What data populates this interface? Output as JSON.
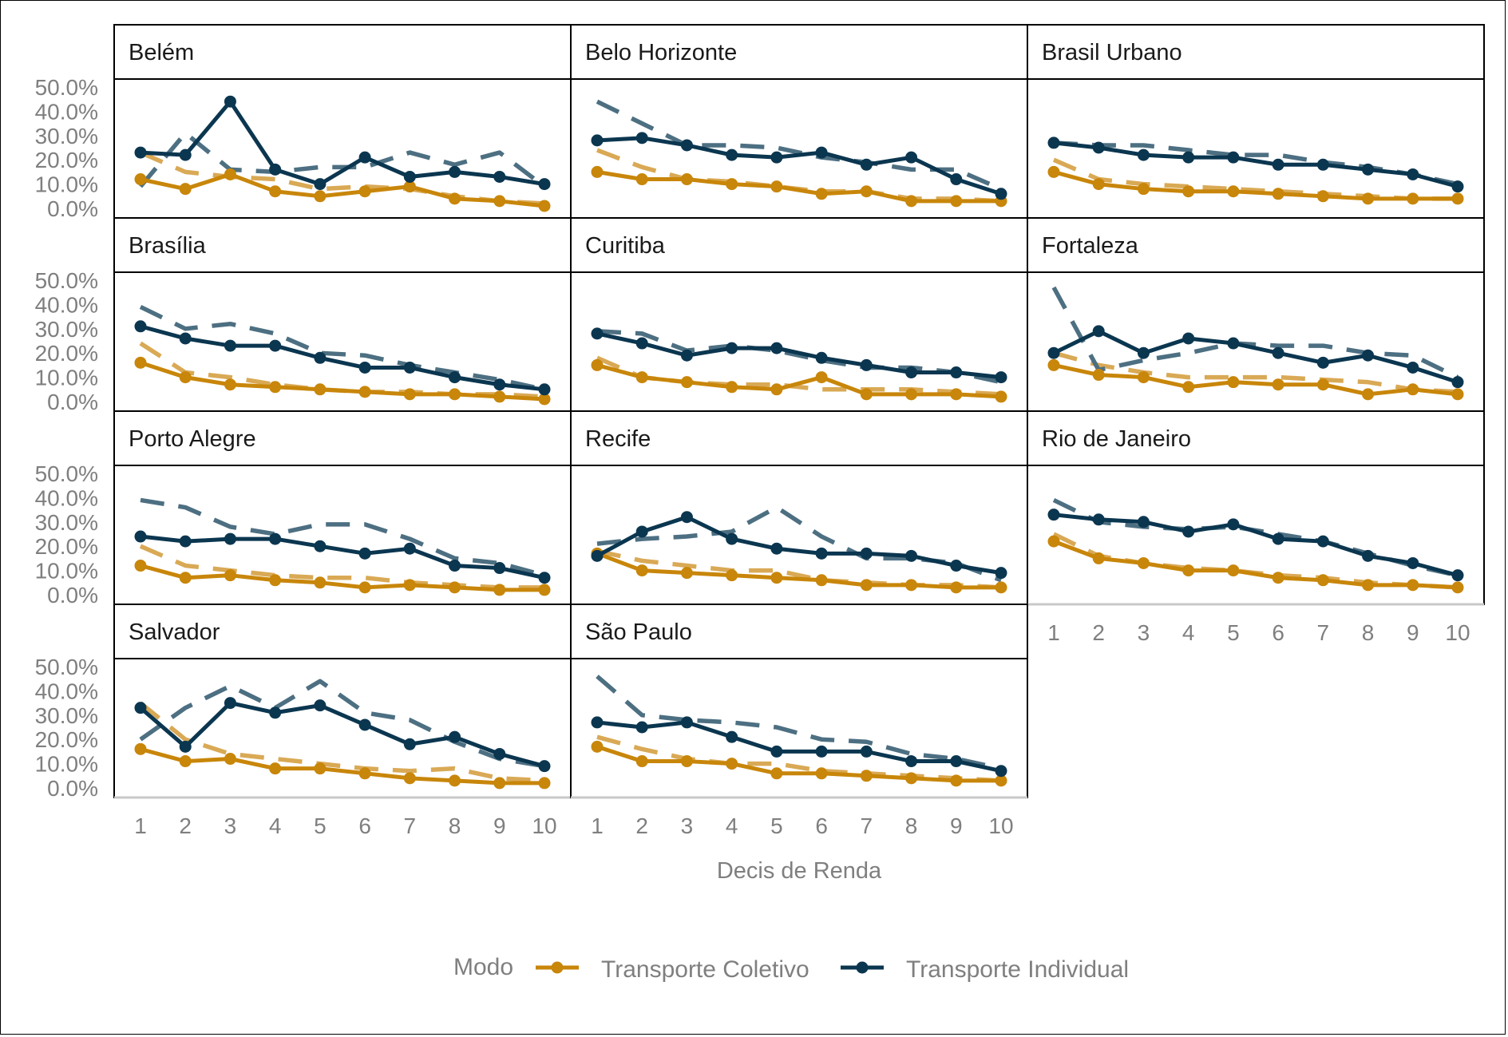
{
  "chart_data": {
    "type": "line",
    "xlabel": "Decis de Renda",
    "ylabel": "",
    "x": [
      1,
      2,
      3,
      4,
      5,
      6,
      7,
      8,
      9,
      10
    ],
    "x_ticks": [
      "1",
      "2",
      "3",
      "4",
      "5",
      "6",
      "7",
      "8",
      "9",
      "10"
    ],
    "y_ticks": [
      "0.0%",
      "10.0%",
      "20.0%",
      "30.0%",
      "40.0%",
      "50.0%"
    ],
    "ylim": [
      0,
      0.5
    ],
    "legend": {
      "title": "Modo",
      "position": "bottom",
      "entries": [
        "Transporte Coletivo",
        "Transporte Individual"
      ]
    },
    "colors": {
      "Transporte Coletivo": "#c8860a",
      "Transporte Individual": "#0b3650",
      "dashed_coletivo": "#d9a955",
      "dashed_individual": "#4d6f82"
    },
    "line_styles": {
      "solid": "line with points",
      "dashed": "dashed line without points (unlabeled in legend)"
    },
    "panels": [
      {
        "title": "Belém",
        "series": [
          {
            "name": "Transporte Coletivo",
            "style": "solid",
            "values": [
              0.12,
              0.08,
              0.14,
              0.07,
              0.05,
              0.07,
              0.09,
              0.04,
              0.03,
              0.01
            ]
          },
          {
            "name": "Transporte Individual",
            "style": "solid",
            "values": [
              0.23,
              0.22,
              0.44,
              0.16,
              0.1,
              0.21,
              0.13,
              0.15,
              0.13,
              0.1
            ]
          },
          {
            "style": "dashed-coletivo",
            "values": [
              0.23,
              0.15,
              0.13,
              0.12,
              0.08,
              0.09,
              0.08,
              0.05,
              0.03,
              0.02
            ]
          },
          {
            "style": "dashed-individual",
            "values": [
              0.09,
              0.31,
              0.16,
              0.15,
              0.17,
              0.17,
              0.23,
              0.18,
              0.23,
              0.09
            ]
          }
        ]
      },
      {
        "title": "Belo Horizonte",
        "series": [
          {
            "name": "Transporte Coletivo",
            "style": "solid",
            "values": [
              0.15,
              0.12,
              0.12,
              0.1,
              0.09,
              0.06,
              0.07,
              0.03,
              0.03,
              0.03
            ]
          },
          {
            "name": "Transporte Individual",
            "style": "solid",
            "values": [
              0.28,
              0.29,
              0.26,
              0.22,
              0.21,
              0.23,
              0.18,
              0.21,
              0.12,
              0.06
            ]
          },
          {
            "style": "dashed-coletivo",
            "values": [
              0.24,
              0.17,
              0.12,
              0.11,
              0.09,
              0.07,
              0.07,
              0.04,
              0.04,
              0.03
            ]
          },
          {
            "style": "dashed-individual",
            "values": [
              0.44,
              0.35,
              0.26,
              0.26,
              0.25,
              0.21,
              0.19,
              0.16,
              0.16,
              0.08
            ]
          }
        ]
      },
      {
        "title": "Brasil Urbano",
        "series": [
          {
            "name": "Transporte Coletivo",
            "style": "solid",
            "values": [
              0.15,
              0.1,
              0.08,
              0.07,
              0.07,
              0.06,
              0.05,
              0.04,
              0.04,
              0.04
            ]
          },
          {
            "name": "Transporte Individual",
            "style": "solid",
            "values": [
              0.27,
              0.25,
              0.22,
              0.21,
              0.21,
              0.18,
              0.18,
              0.16,
              0.14,
              0.09
            ]
          },
          {
            "style": "dashed-coletivo",
            "values": [
              0.2,
              0.12,
              0.1,
              0.09,
              0.08,
              0.07,
              0.06,
              0.05,
              0.04,
              0.04
            ]
          },
          {
            "style": "dashed-individual",
            "values": [
              0.27,
              0.26,
              0.26,
              0.24,
              0.22,
              0.22,
              0.19,
              0.17,
              0.14,
              0.1
            ]
          }
        ]
      },
      {
        "title": "Brasília",
        "series": [
          {
            "name": "Transporte Coletivo",
            "style": "solid",
            "values": [
              0.16,
              0.1,
              0.07,
              0.06,
              0.05,
              0.04,
              0.03,
              0.03,
              0.02,
              0.01
            ]
          },
          {
            "name": "Transporte Individual",
            "style": "solid",
            "values": [
              0.31,
              0.26,
              0.23,
              0.23,
              0.18,
              0.14,
              0.14,
              0.1,
              0.07,
              0.05
            ]
          },
          {
            "style": "dashed-coletivo",
            "values": [
              0.24,
              0.12,
              0.1,
              0.07,
              0.05,
              0.04,
              0.04,
              0.03,
              0.03,
              0.02
            ]
          },
          {
            "style": "dashed-individual",
            "values": [
              0.39,
              0.3,
              0.32,
              0.28,
              0.2,
              0.19,
              0.15,
              0.12,
              0.09,
              0.05
            ]
          }
        ]
      },
      {
        "title": "Curitiba",
        "series": [
          {
            "name": "Transporte Coletivo",
            "style": "solid",
            "values": [
              0.15,
              0.1,
              0.08,
              0.06,
              0.05,
              0.1,
              0.03,
              0.03,
              0.03,
              0.02
            ]
          },
          {
            "name": "Transporte Individual",
            "style": "solid",
            "values": [
              0.28,
              0.24,
              0.19,
              0.22,
              0.22,
              0.18,
              0.15,
              0.12,
              0.12,
              0.1
            ]
          },
          {
            "style": "dashed-coletivo",
            "values": [
              0.18,
              0.1,
              0.08,
              0.07,
              0.07,
              0.05,
              0.05,
              0.05,
              0.04,
              0.03
            ]
          },
          {
            "style": "dashed-individual",
            "values": [
              0.29,
              0.28,
              0.21,
              0.23,
              0.21,
              0.17,
              0.14,
              0.14,
              0.12,
              0.08
            ]
          }
        ]
      },
      {
        "title": "Fortaleza",
        "series": [
          {
            "name": "Transporte Coletivo",
            "style": "solid",
            "values": [
              0.15,
              0.11,
              0.1,
              0.06,
              0.08,
              0.07,
              0.07,
              0.03,
              0.05,
              0.03
            ]
          },
          {
            "name": "Transporte Individual",
            "style": "solid",
            "values": [
              0.2,
              0.29,
              0.2,
              0.26,
              0.24,
              0.2,
              0.16,
              0.19,
              0.14,
              0.08
            ]
          },
          {
            "style": "dashed-coletivo",
            "values": [
              0.2,
              0.15,
              0.12,
              0.1,
              0.1,
              0.1,
              0.09,
              0.08,
              0.05,
              0.04
            ]
          },
          {
            "style": "dashed-individual",
            "values": [
              0.47,
              0.13,
              0.17,
              0.2,
              0.24,
              0.23,
              0.23,
              0.2,
              0.19,
              0.1
            ]
          }
        ]
      },
      {
        "title": "Porto Alegre",
        "series": [
          {
            "name": "Transporte Coletivo",
            "style": "solid",
            "values": [
              0.12,
              0.07,
              0.08,
              0.06,
              0.05,
              0.03,
              0.04,
              0.03,
              0.02,
              0.02
            ]
          },
          {
            "name": "Transporte Individual",
            "style": "solid",
            "values": [
              0.24,
              0.22,
              0.23,
              0.23,
              0.2,
              0.17,
              0.19,
              0.12,
              0.11,
              0.07
            ]
          },
          {
            "style": "dashed-coletivo",
            "values": [
              0.2,
              0.12,
              0.1,
              0.08,
              0.07,
              0.07,
              0.05,
              0.04,
              0.03,
              0.03
            ]
          },
          {
            "style": "dashed-individual",
            "values": [
              0.39,
              0.36,
              0.28,
              0.25,
              0.29,
              0.29,
              0.23,
              0.15,
              0.13,
              0.08
            ]
          }
        ]
      },
      {
        "title": "Recife",
        "series": [
          {
            "name": "Transporte Coletivo",
            "style": "solid",
            "values": [
              0.17,
              0.1,
              0.09,
              0.08,
              0.07,
              0.06,
              0.04,
              0.04,
              0.03,
              0.03
            ]
          },
          {
            "name": "Transporte Individual",
            "style": "solid",
            "values": [
              0.16,
              0.26,
              0.32,
              0.23,
              0.19,
              0.17,
              0.17,
              0.16,
              0.12,
              0.09
            ]
          },
          {
            "style": "dashed-coletivo",
            "values": [
              0.18,
              0.14,
              0.12,
              0.1,
              0.1,
              0.06,
              0.05,
              0.04,
              0.04,
              0.03
            ]
          },
          {
            "style": "dashed-individual",
            "values": [
              0.21,
              0.23,
              0.24,
              0.26,
              0.36,
              0.24,
              0.15,
              0.15,
              0.13,
              0.06
            ]
          }
        ]
      },
      {
        "title": "Rio de Janeiro",
        "series": [
          {
            "name": "Transporte Coletivo",
            "style": "solid",
            "values": [
              0.22,
              0.15,
              0.13,
              0.1,
              0.1,
              0.07,
              0.06,
              0.04,
              0.04,
              0.03
            ]
          },
          {
            "name": "Transporte Individual",
            "style": "solid",
            "values": [
              0.33,
              0.31,
              0.3,
              0.26,
              0.29,
              0.23,
              0.22,
              0.16,
              0.13,
              0.08
            ]
          },
          {
            "style": "dashed-coletivo",
            "values": [
              0.25,
              0.16,
              0.13,
              0.11,
              0.1,
              0.08,
              0.07,
              0.05,
              0.04,
              0.03
            ]
          },
          {
            "style": "dashed-individual",
            "values": [
              0.39,
              0.3,
              0.28,
              0.27,
              0.28,
              0.25,
              0.22,
              0.17,
              0.12,
              0.08
            ]
          }
        ]
      },
      {
        "title": "Salvador",
        "series": [
          {
            "name": "Transporte Coletivo",
            "style": "solid",
            "values": [
              0.16,
              0.11,
              0.12,
              0.08,
              0.08,
              0.06,
              0.04,
              0.03,
              0.02,
              0.02
            ]
          },
          {
            "name": "Transporte Individual",
            "style": "solid",
            "values": [
              0.33,
              0.17,
              0.35,
              0.31,
              0.34,
              0.26,
              0.18,
              0.21,
              0.14,
              0.09
            ]
          },
          {
            "style": "dashed-coletivo",
            "values": [
              0.35,
              0.2,
              0.14,
              0.12,
              0.1,
              0.08,
              0.07,
              0.08,
              0.04,
              0.03
            ]
          },
          {
            "style": "dashed-individual",
            "values": [
              0.2,
              0.33,
              0.42,
              0.33,
              0.44,
              0.31,
              0.28,
              0.19,
              0.12,
              0.09
            ]
          }
        ]
      },
      {
        "title": "São Paulo",
        "series": [
          {
            "name": "Transporte Coletivo",
            "style": "solid",
            "values": [
              0.17,
              0.11,
              0.11,
              0.1,
              0.06,
              0.06,
              0.05,
              0.04,
              0.03,
              0.03
            ]
          },
          {
            "name": "Transporte Individual",
            "style": "solid",
            "values": [
              0.27,
              0.25,
              0.27,
              0.21,
              0.15,
              0.15,
              0.15,
              0.11,
              0.11,
              0.07
            ]
          },
          {
            "style": "dashed-coletivo",
            "values": [
              0.21,
              0.16,
              0.12,
              0.1,
              0.1,
              0.07,
              0.06,
              0.05,
              0.04,
              0.03
            ]
          },
          {
            "style": "dashed-individual",
            "values": [
              0.46,
              0.3,
              0.28,
              0.27,
              0.25,
              0.2,
              0.19,
              0.14,
              0.12,
              0.08
            ]
          }
        ]
      }
    ]
  }
}
